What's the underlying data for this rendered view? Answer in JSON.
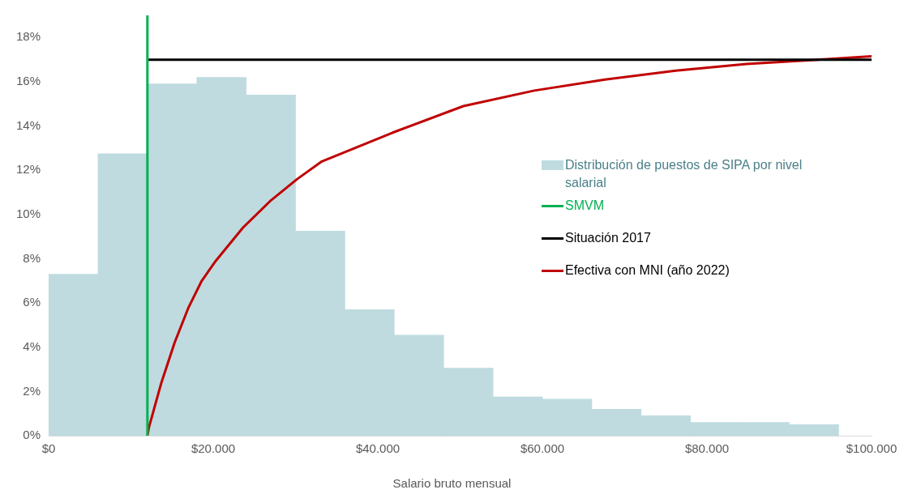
{
  "chart_data": {
    "type": "histogram",
    "xlabel": "Salario bruto mensual",
    "xlim": [
      0,
      100000
    ],
    "xticks": [
      {
        "value": 0,
        "label": "$0"
      },
      {
        "value": 20000,
        "label": "$20.000"
      },
      {
        "value": 40000,
        "label": "$40.000"
      },
      {
        "value": 60000,
        "label": "$60.000"
      },
      {
        "value": 80000,
        "label": "$80.000"
      },
      {
        "value": 100000,
        "label": "$100.000"
      }
    ],
    "ylim": [
      0,
      19
    ],
    "yticks": [
      {
        "value": 0,
        "label": "0%"
      },
      {
        "value": 2,
        "label": "2%"
      },
      {
        "value": 4,
        "label": "4%"
      },
      {
        "value": 6,
        "label": "6%"
      },
      {
        "value": 8,
        "label": "8%"
      },
      {
        "value": 10,
        "label": "10%"
      },
      {
        "value": 12,
        "label": "12%"
      },
      {
        "value": 14,
        "label": "14%"
      },
      {
        "value": 16,
        "label": "16%"
      },
      {
        "value": 18,
        "label": "18%"
      }
    ],
    "grid": false,
    "legend": "right",
    "marker": "none",
    "series": [
      {
        "type": "histogram",
        "name": "Distribución de puestos de SIPA por nivel salarial",
        "color": "#bfdbdf",
        "bins": [
          0,
          6000,
          12000,
          18000,
          24000,
          30000,
          36000,
          42000,
          48000,
          54000,
          60000,
          66000,
          72000,
          78000,
          84000,
          90000,
          96000
        ],
        "values": [
          7.3,
          12.75,
          15.9,
          16.2,
          15.4,
          9.25,
          5.7,
          4.55,
          3.05,
          1.75,
          1.65,
          1.2,
          0.9,
          0.6,
          0.6,
          0.5
        ]
      },
      {
        "type": "line",
        "name": "SMVM",
        "color": "#00b050",
        "x": [
          12000,
          12000
        ],
        "values": [
          0,
          19
        ]
      },
      {
        "type": "line",
        "name": "Situación 2017",
        "color": "#000000",
        "x": [
          12000,
          100000
        ],
        "values": [
          17,
          17
        ]
      },
      {
        "type": "line",
        "name": "Efectiva con MNI (año 2022)",
        "color": "#c00000",
        "x": [
          12000,
          12200,
          13700,
          15300,
          17000,
          18600,
          20300,
          23600,
          26900,
          30200,
          33200,
          41800,
          50400,
          59000,
          67600,
          76200,
          84800,
          93500,
          100000
        ],
        "values": [
          0,
          0.4,
          2.4,
          4.2,
          5.8,
          7,
          7.9,
          9.4,
          10.6,
          11.6,
          12.4,
          13.7,
          14.9,
          15.6,
          16.1,
          16.5,
          16.8,
          17,
          17.15
        ]
      }
    ]
  }
}
